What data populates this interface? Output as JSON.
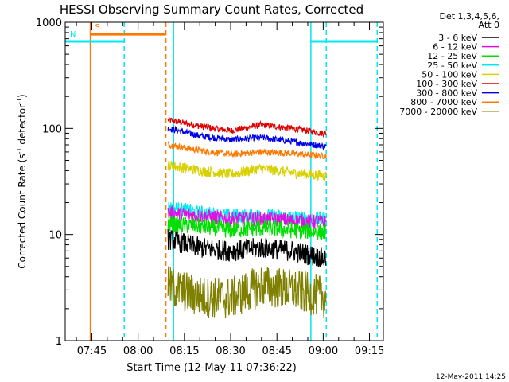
{
  "chart_data": {
    "type": "line",
    "title": "HESSI Observing Summary Count Rates, Corrected",
    "xlabel": "Start Time (12-May-11 07:36:22)",
    "ylabel": "Corrected Count Rate (s^-1 detector^-1)",
    "ylabel_parts": {
      "main": "Corrected Count Rate (s",
      "sup1": "-1",
      "mid": " detector",
      "sup2": "-1",
      "end": ")"
    },
    "y_scale": "log",
    "ylim": [
      1,
      1000
    ],
    "y_ticks": [
      1,
      10,
      100,
      1000
    ],
    "y_tick_labels": [
      "1",
      "10",
      "100",
      "1000"
    ],
    "xlim": [
      "07:36:22",
      "09:19:30"
    ],
    "x_ticks": [
      "07:45",
      "08:00",
      "08:15",
      "08:30",
      "08:45",
      "09:00",
      "09:15"
    ],
    "grid": false,
    "legend": {
      "placement": "right",
      "header": [
        "Det 1,3,4,5,6,",
        "Att 0"
      ],
      "entries": [
        {
          "label": "3 - 6 keV",
          "color": "#000000"
        },
        {
          "label": "6 - 12 keV",
          "color": "#e010e0"
        },
        {
          "label": "12 - 25 keV",
          "color": "#00e000"
        },
        {
          "label": "25 - 50 keV",
          "color": "#00e8f0"
        },
        {
          "label": "50 - 100 keV",
          "color": "#d8d000"
        },
        {
          "label": "100 - 300 keV",
          "color": "#e00000"
        },
        {
          "label": "300 - 800 keV",
          "color": "#0000e8"
        },
        {
          "label": "800 - 7000 keV",
          "color": "#ff7800"
        },
        {
          "label": "7000 - 20000 keV",
          "color": "#808000"
        }
      ]
    },
    "data_window": {
      "start": "08:09:40",
      "end": "09:01:00"
    },
    "series": [
      {
        "name": "100 - 300 keV",
        "color": "#e00000",
        "x": [
          "08:10",
          "08:20",
          "08:30",
          "08:40",
          "08:50",
          "09:00"
        ],
        "y": [
          120,
          105,
          95,
          108,
          100,
          90
        ],
        "noise": 0.03
      },
      {
        "name": "300 - 800 keV",
        "color": "#0000e8",
        "x": [
          "08:10",
          "08:20",
          "08:30",
          "08:40",
          "08:50",
          "09:00"
        ],
        "y": [
          100,
          85,
          78,
          82,
          75,
          68
        ],
        "noise": 0.03
      },
      {
        "name": "800 - 7000 keV",
        "color": "#ff7800",
        "x": [
          "08:10",
          "08:20",
          "08:30",
          "08:40",
          "08:50",
          "09:00"
        ],
        "y": [
          70,
          62,
          57,
          60,
          58,
          55
        ],
        "noise": 0.03
      },
      {
        "name": "50 - 100 keV",
        "color": "#d8d000",
        "x": [
          "08:10",
          "08:20",
          "08:30",
          "08:40",
          "08:50",
          "09:00"
        ],
        "y": [
          45,
          40,
          37,
          42,
          38,
          36
        ],
        "noise": 0.05
      },
      {
        "name": "25 - 50 keV",
        "color": "#00e8f0",
        "x": [
          "08:10",
          "08:20",
          "08:30",
          "08:40",
          "08:50",
          "09:00"
        ],
        "y": [
          18,
          16,
          15,
          15,
          14.5,
          14
        ],
        "noise": 0.07
      },
      {
        "name": "6 - 12 keV",
        "color": "#e010e0",
        "x": [
          "08:10",
          "08:20",
          "08:30",
          "08:40",
          "08:50",
          "09:00"
        ],
        "y": [
          16,
          15,
          14,
          14,
          13.5,
          13
        ],
        "noise": 0.07
      },
      {
        "name": "12 - 25 keV",
        "color": "#00e000",
        "x": [
          "08:10",
          "08:20",
          "08:30",
          "08:40",
          "08:50",
          "09:00"
        ],
        "y": [
          12.5,
          12,
          11,
          11.5,
          11,
          10.5
        ],
        "noise": 0.08
      },
      {
        "name": "3 - 6 keV",
        "color": "#000000",
        "x": [
          "08:10",
          "08:20",
          "08:30",
          "08:40",
          "08:50",
          "09:00"
        ],
        "y": [
          9,
          7.5,
          7,
          7.5,
          7,
          6
        ],
        "noise": 0.1
      },
      {
        "name": "7000 - 20000 keV",
        "color": "#808000",
        "x": [
          "08:10",
          "08:20",
          "08:30",
          "08:40",
          "08:50",
          "09:00"
        ],
        "y": [
          3.2,
          2.6,
          2.5,
          3.3,
          3.0,
          2.6
        ],
        "noise": 0.2
      }
    ],
    "flags": [
      {
        "label": "S",
        "color": "#ff7800",
        "start": "07:44:30",
        "end": "08:09:00",
        "level": 770
      },
      {
        "label": "N",
        "color": "#00e8f0",
        "start": "07:36:22",
        "end": "07:55:30",
        "level": 660
      },
      {
        "label": "",
        "color": "#00e8f0",
        "start": "08:56:00",
        "end": "09:17:30",
        "level": 660
      }
    ],
    "markers": [
      {
        "time": "07:44:30",
        "color": "#ff7800",
        "style": "solid"
      },
      {
        "time": "07:55:30",
        "color": "#00e8f0",
        "style": "dashed"
      },
      {
        "time": "08:09:00",
        "color": "#ff7800",
        "style": "dashed"
      },
      {
        "time": "08:11:30",
        "color": "#00e8f0",
        "style": "solid"
      },
      {
        "time": "08:56:00",
        "color": "#00e8f0",
        "style": "solid"
      },
      {
        "time": "09:01:00",
        "color": "#00e8f0",
        "style": "dashed"
      },
      {
        "time": "09:17:30",
        "color": "#00e8f0",
        "style": "dashed"
      }
    ]
  },
  "footer": {
    "timestamp": "12-May-2011 14:25"
  }
}
